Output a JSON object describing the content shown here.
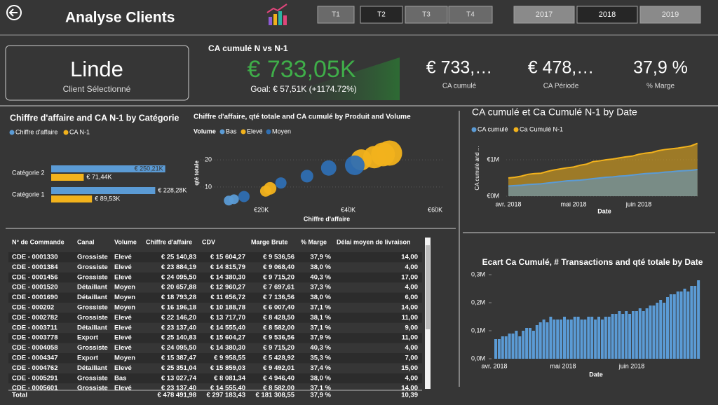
{
  "header": {
    "title": "Analyse Clients",
    "quarters": [
      "T1",
      "T2",
      "T3",
      "T4"
    ],
    "selected_quarter": 1,
    "years": [
      "2017",
      "2018",
      "2019"
    ],
    "selected_year": 1
  },
  "client": {
    "name": "Linde",
    "label": "Client Sélectionné"
  },
  "kpi_main": {
    "title": "CA cumulé N vs N-1",
    "value": "€ 733,05K",
    "goal": "Goal: € 57,51K (+1174.72%)",
    "color": "#3fae49"
  },
  "kpis": [
    {
      "value": "€ 733,…",
      "label": "CA cumulé"
    },
    {
      "value": "€ 478,…",
      "label": "CA Période"
    },
    {
      "value": "37,9 %",
      "label": "% Marge"
    }
  ],
  "chart_data": [
    {
      "type": "bar",
      "horizontal": true,
      "title": "Chiffre d'affaire and CA N-1 by Catégorie",
      "categories": [
        "Catégorie 2",
        "Catégorie 1"
      ],
      "series": [
        {
          "name": "Chiffre d'affaire",
          "color": "#5b9bd5",
          "values": [
            250.21,
            228.28
          ],
          "value_labels": [
            "€ 250,21K",
            "€ 228,28K"
          ]
        },
        {
          "name": "CA N-1",
          "color": "#f2b21c",
          "values": [
            71.44,
            89.53
          ],
          "value_labels": [
            "€ 71,44K",
            "€ 89,53K"
          ]
        }
      ]
    },
    {
      "type": "scatter",
      "title": "Chiffre d'affaire, qté totale and CA cumulé by Produit and Volume",
      "legend_title": "Volume",
      "x_label": "Chiffre d'affaire",
      "y_label": "qté totale",
      "xlim": [
        6000,
        62000
      ],
      "xticks": [
        {
          "value": 20000,
          "label": "€20K"
        },
        {
          "value": 40000,
          "label": "€40K"
        },
        {
          "value": 60000,
          "label": "€60K"
        }
      ],
      "ylim": [
        3,
        27
      ],
      "yticks": [
        10,
        20
      ],
      "grid": true,
      "series": [
        {
          "name": "Bas",
          "color": "#5b9bd5",
          "x": [
            12500,
            13700
          ],
          "values": [
            5,
            5.5
          ],
          "sizes": [
            49,
            49
          ]
        },
        {
          "name": "Elevé",
          "color": "#f2b21c",
          "x": [
            21000,
            22000,
            43000,
            46000,
            48000,
            49500
          ],
          "values": [
            8.5,
            9.5,
            20,
            21,
            22,
            22.5
          ],
          "sizes": [
            64,
            81,
            225,
            256,
            289,
            324
          ]
        },
        {
          "name": "Moyen",
          "color": "#2f6fb3",
          "x": [
            16000,
            24500,
            30500,
            35500,
            41500
          ],
          "values": [
            6.5,
            11.5,
            14,
            17,
            18
          ],
          "sizes": [
            64,
            64,
            81,
            121,
            196
          ]
        }
      ]
    },
    {
      "type": "area",
      "title": "CA cumulé et Ca Cumulé N-1 by Date",
      "x_label": "Date",
      "y_label": "CA cumulé and ...",
      "categories": [
        "avr. 2018",
        null,
        null,
        null,
        null,
        null,
        null,
        null,
        null,
        null,
        "mai 2018",
        null,
        null,
        null,
        null,
        null,
        null,
        null,
        null,
        null,
        "juin 2018",
        null,
        null,
        null,
        null,
        null,
        null,
        null,
        null,
        null
      ],
      "ylim": [
        0,
        1.55
      ],
      "yticks": [
        {
          "value": 0,
          "label": "€0M"
        },
        {
          "value": 1,
          "label": "€1M"
        }
      ],
      "series": [
        {
          "name": "CA cumulé",
          "color": "#5b9bd5",
          "values": [
            0.28,
            0.29,
            0.3,
            0.32,
            0.33,
            0.34,
            0.36,
            0.38,
            0.4,
            0.42,
            0.43,
            0.44,
            0.46,
            0.48,
            0.5,
            0.52,
            0.53,
            0.55,
            0.56,
            0.58,
            0.6,
            0.62,
            0.63,
            0.64,
            0.66,
            0.67,
            0.69,
            0.7,
            0.71,
            0.73
          ]
        },
        {
          "name": "Ca Cumulé N-1",
          "color": "#f2b21c",
          "values": [
            0.5,
            0.52,
            0.55,
            0.6,
            0.62,
            0.63,
            0.68,
            0.72,
            0.75,
            0.78,
            0.8,
            0.85,
            0.88,
            0.95,
            0.97,
            1.0,
            1.02,
            1.05,
            1.08,
            1.1,
            1.15,
            1.18,
            1.2,
            1.25,
            1.28,
            1.3,
            1.32,
            1.35,
            1.38,
            1.45
          ]
        }
      ]
    },
    {
      "type": "bar",
      "horizontal": false,
      "title": "Ecart Ca Cumulé, # Transactions and qté totale by Date",
      "x_label": "Date",
      "color": "#5b9bd5",
      "categories": [
        "avr. 2018",
        null,
        null,
        null,
        null,
        null,
        null,
        null,
        null,
        null,
        null,
        null,
        null,
        null,
        null,
        null,
        null,
        null,
        null,
        null,
        "mai 2018",
        null,
        null,
        null,
        null,
        null,
        null,
        null,
        null,
        null,
        null,
        null,
        null,
        null,
        null,
        null,
        null,
        null,
        null,
        null,
        "juin 2018",
        null,
        null,
        null,
        null,
        null,
        null,
        null,
        null,
        null,
        null,
        null,
        null,
        null,
        null,
        null,
        null,
        null,
        null,
        null
      ],
      "values": [
        0.07,
        0.07,
        0.08,
        0.08,
        0.09,
        0.09,
        0.1,
        0.08,
        0.1,
        0.11,
        0.11,
        0.1,
        0.12,
        0.13,
        0.14,
        0.13,
        0.15,
        0.14,
        0.14,
        0.14,
        0.15,
        0.14,
        0.14,
        0.15,
        0.15,
        0.14,
        0.14,
        0.15,
        0.15,
        0.14,
        0.15,
        0.14,
        0.15,
        0.15,
        0.16,
        0.16,
        0.17,
        0.16,
        0.17,
        0.16,
        0.17,
        0.17,
        0.18,
        0.17,
        0.18,
        0.19,
        0.19,
        0.2,
        0.21,
        0.2,
        0.22,
        0.23,
        0.23,
        0.24,
        0.24,
        0.25,
        0.24,
        0.26,
        0.26,
        0.28
      ],
      "ylim": [
        0,
        0.31
      ],
      "yticks": [
        {
          "value": 0,
          "label": "0,0M"
        },
        {
          "value": 0.1,
          "label": "0,1M"
        },
        {
          "value": 0.2,
          "label": "0,2M"
        },
        {
          "value": 0.3,
          "label": "0,3M"
        }
      ]
    }
  ],
  "table": {
    "columns": [
      "N° de Commande",
      "Canal",
      "Volume",
      "Chiffre d'affaire",
      "CDV",
      "Marge Brute",
      "% Marge",
      "Délai moyen de livraison"
    ],
    "rows": [
      [
        "CDE - 0001330",
        "Grossiste",
        "Elevé",
        "€ 25 140,83",
        "€ 15 604,27",
        "€ 9 536,56",
        "37,9 %",
        "14,00"
      ],
      [
        "CDE - 0001384",
        "Grossiste",
        "Elevé",
        "€ 23 884,19",
        "€ 14 815,79",
        "€ 9 068,40",
        "38,0 %",
        "4,00"
      ],
      [
        "CDE - 0001456",
        "Grossiste",
        "Elevé",
        "€ 24 095,50",
        "€ 14 380,30",
        "€ 9 715,20",
        "40,3 %",
        "17,00"
      ],
      [
        "CDE - 0001520",
        "Détaillant",
        "Moyen",
        "€ 20 657,88",
        "€ 12 960,27",
        "€ 7 697,61",
        "37,3 %",
        "4,00"
      ],
      [
        "CDE - 0001690",
        "Détaillant",
        "Moyen",
        "€ 18 793,28",
        "€ 11 656,72",
        "€ 7 136,56",
        "38,0 %",
        "6,00"
      ],
      [
        "CDE - 000202",
        "Grossiste",
        "Moyen",
        "€ 16 196,18",
        "€ 10 188,78",
        "€ 6 007,40",
        "37,1 %",
        "14,00"
      ],
      [
        "CDE - 0002782",
        "Grossiste",
        "Elevé",
        "€ 22 146,20",
        "€ 13 717,70",
        "€ 8 428,50",
        "38,1 %",
        "11,00"
      ],
      [
        "CDE - 0003711",
        "Détaillant",
        "Elevé",
        "€ 23 137,40",
        "€ 14 555,40",
        "€ 8 582,00",
        "37,1 %",
        "9,00"
      ],
      [
        "CDE - 0003778",
        "Export",
        "Elevé",
        "€ 25 140,83",
        "€ 15 604,27",
        "€ 9 536,56",
        "37,9 %",
        "11,00"
      ],
      [
        "CDE - 0004058",
        "Grossiste",
        "Elevé",
        "€ 24 095,50",
        "€ 14 380,30",
        "€ 9 715,20",
        "40,3 %",
        "4,00"
      ],
      [
        "CDE - 0004347",
        "Export",
        "Moyen",
        "€ 15 387,47",
        "€ 9 958,55",
        "€ 5 428,92",
        "35,3 %",
        "7,00"
      ],
      [
        "CDE - 0004762",
        "Détaillant",
        "Elevé",
        "€ 25 351,04",
        "€ 15 859,03",
        "€ 9 492,01",
        "37,4 %",
        "15,00"
      ],
      [
        "CDE - 0005291",
        "Grossiste",
        "Bas",
        "€ 13 027,74",
        "€ 8 081,34",
        "€ 4 946,40",
        "38,0 %",
        "4,00"
      ],
      [
        "CDE - 0005601",
        "Grossiste",
        "Elevé",
        "€ 23 137,40",
        "€ 14 555,40",
        "€ 8 582,00",
        "37,1 %",
        "14,00"
      ]
    ],
    "total": {
      "label": "Total",
      "values": [
        "€ 478 491,98",
        "€ 297 183,43",
        "€ 181 308,55",
        "37,9 %",
        "10,39"
      ]
    }
  }
}
